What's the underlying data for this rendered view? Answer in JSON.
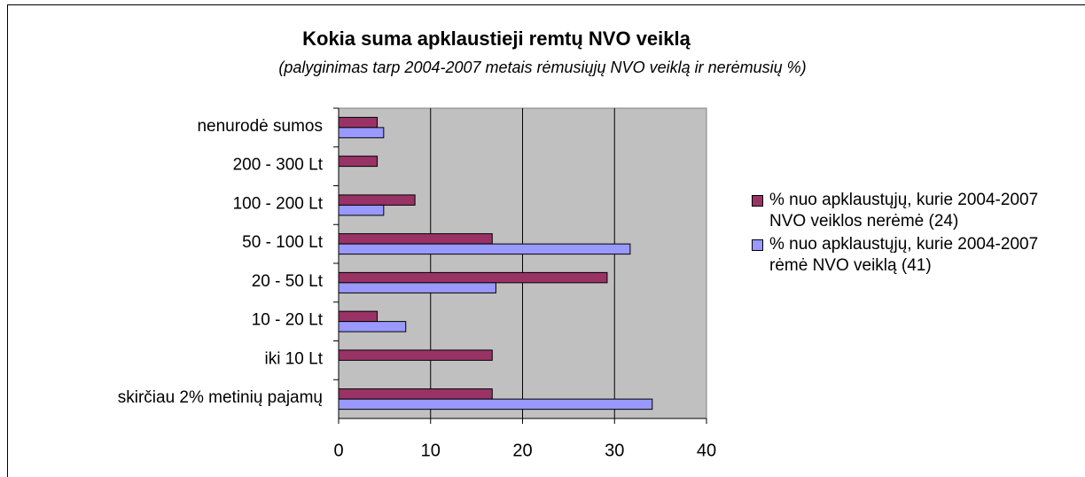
{
  "chart_data": {
    "type": "bar",
    "orientation": "horizontal",
    "title": "Kokia suma apklaustieji remtų NVO veiklą",
    "subtitle": "(palyginimas tarp 2004-2007 metais rėmusiųjų NVO veiklą ir nerėmusių %)",
    "categories": [
      "nenurodė sumos",
      "200 - 300 Lt",
      "100 - 200 Lt",
      "50 - 100 Lt",
      "20 - 50 Lt",
      "10 - 20 Lt",
      "iki 10 Lt",
      "skirčiau 2% metinių pajamų"
    ],
    "series": [
      {
        "name": "% nuo apklaustųjų, kurie 2004-2007 NVO veiklos nerėmė (24)",
        "color": "#993366",
        "values": [
          4.2,
          4.2,
          8.3,
          16.7,
          29.2,
          4.2,
          16.7,
          16.7
        ]
      },
      {
        "name": "% nuo apklaustųjų, kurie 2004-2007 rėmė NVO veiklą (41)",
        "color": "#9999ff",
        "values": [
          4.9,
          0,
          4.9,
          31.7,
          17.1,
          7.3,
          0,
          34.1
        ]
      }
    ],
    "xlim": [
      0,
      40
    ],
    "xticks": [
      0,
      10,
      20,
      30,
      40
    ],
    "grid": true,
    "legend": "right"
  }
}
